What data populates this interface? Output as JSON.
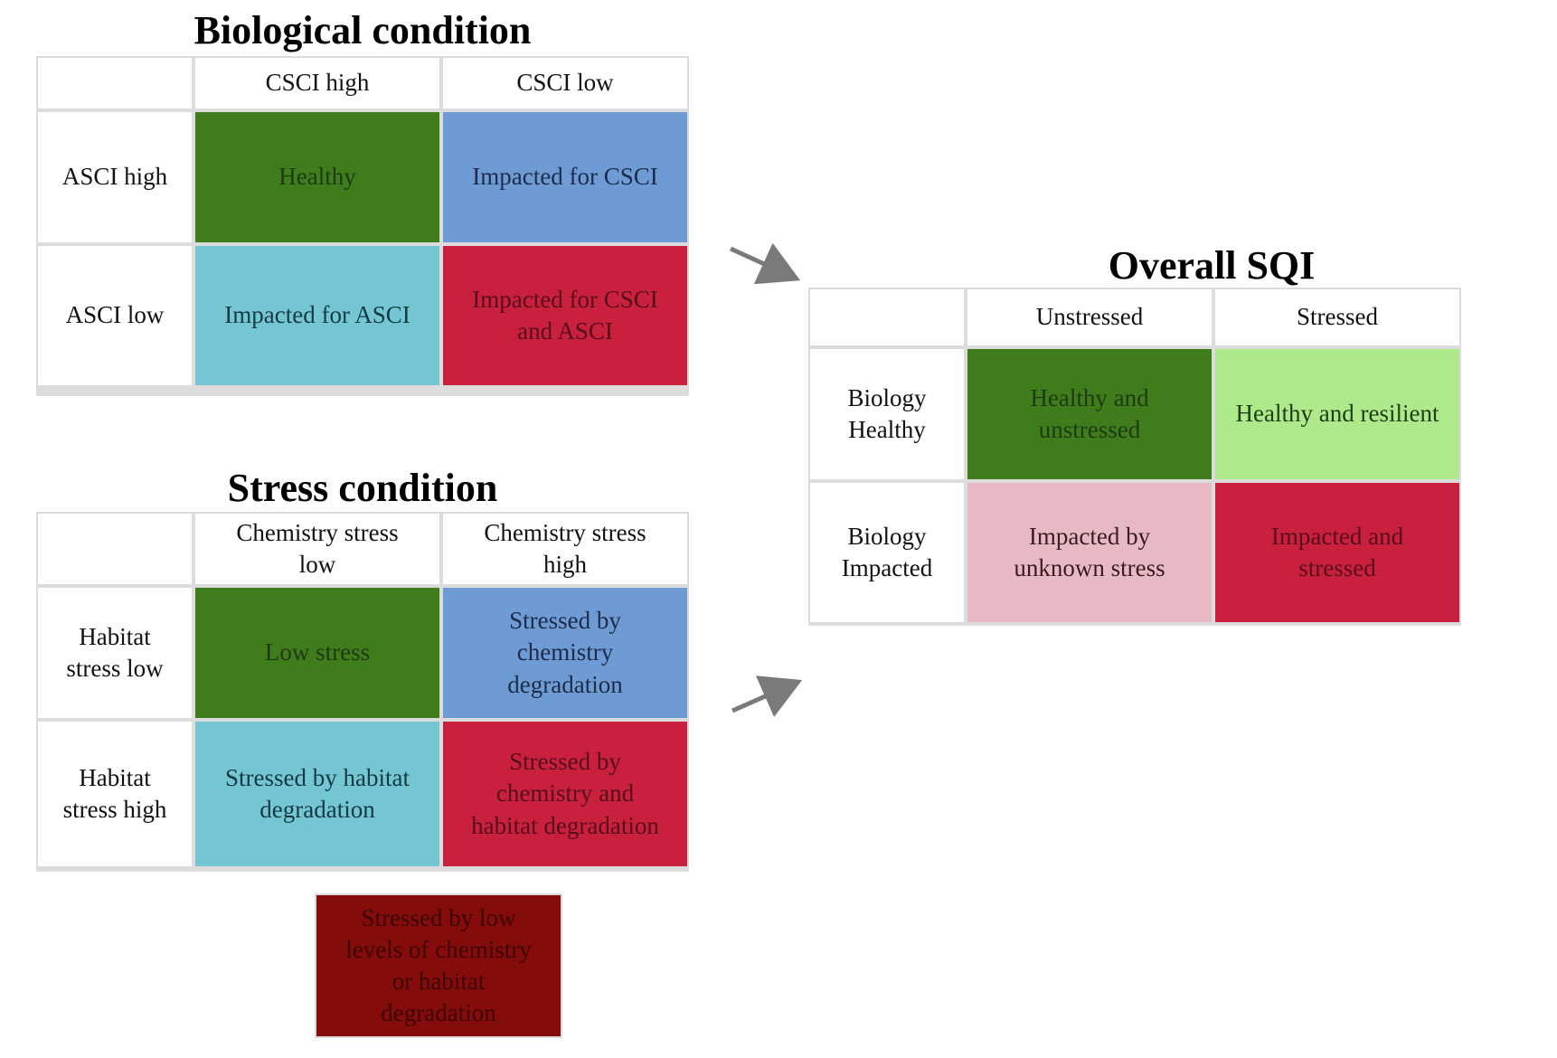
{
  "biological": {
    "title": "Biological condition",
    "col_headers": [
      "CSCI high",
      "CSCI low"
    ],
    "rows": [
      {
        "header": "ASCI high",
        "cells": [
          {
            "text": "Healthy",
            "color": "#3f7d1c"
          },
          {
            "text": "Impacted for CSCI",
            "color": "#6f9bd5"
          }
        ]
      },
      {
        "header": "ASCI low",
        "cells": [
          {
            "text": "Impacted for ASCI",
            "color": "#74c6d3"
          },
          {
            "text": "Impacted for CSCI\nand ASCI",
            "color": "#c8203d"
          }
        ]
      }
    ]
  },
  "stress": {
    "title": "Stress condition",
    "col_headers": [
      "Chemistry stress\nlow",
      "Chemistry stress\nhigh"
    ],
    "rows": [
      {
        "header": "Habitat\nstress low",
        "cells": [
          {
            "text": "Low stress",
            "color": "#3f7d1c"
          },
          {
            "text": "Stressed by\nchemistry\ndegradation",
            "color": "#6f9bd5"
          }
        ]
      },
      {
        "header": "Habitat\nstress high",
        "cells": [
          {
            "text": "Stressed by  habitat\ndegradation",
            "color": "#74c6d3"
          },
          {
            "text": "Stressed by\nchemistry and\nhabitat degradation",
            "color": "#c8203d"
          }
        ]
      }
    ],
    "extra_box": {
      "text": "Stressed by low\nlevels of chemistry\nor habitat\ndegradation",
      "color": "#840c0b"
    }
  },
  "sqi": {
    "title": "Overall SQI",
    "col_headers": [
      "Unstressed",
      "Stressed"
    ],
    "rows": [
      {
        "header": "Biology\nHealthy",
        "cells": [
          {
            "text": "Healthy and\nunstressed",
            "color": "#3f7d1c"
          },
          {
            "text": "Healthy and resilient",
            "color": "#aeea8c"
          }
        ]
      },
      {
        "header": "Biology\nImpacted",
        "cells": [
          {
            "text": "Impacted by\nunknown stress",
            "color": "#e7b9c4"
          },
          {
            "text": "Impacted and\nstressed",
            "color": "#c8203d"
          }
        ]
      }
    ]
  },
  "arrow_color": "#7a7a7a"
}
